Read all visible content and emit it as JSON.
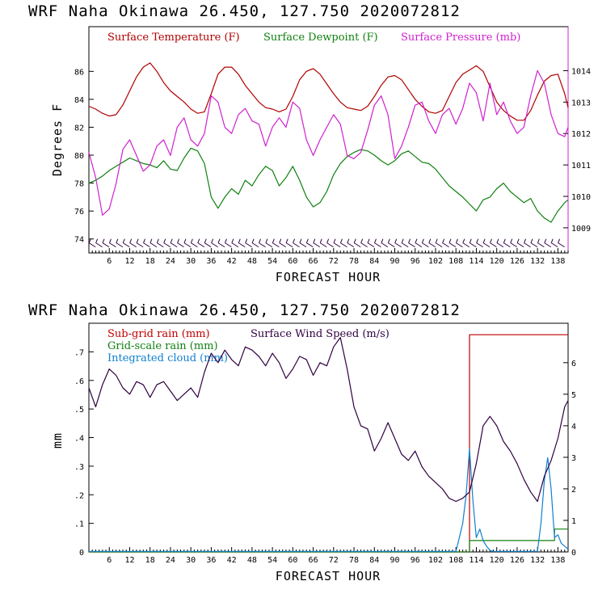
{
  "chart_data": [
    {
      "type": "line",
      "title": "WRF   Naha Okinawa  26.450, 127.750  2020072812",
      "xlabel": "FORECAST HOUR",
      "ylabel": "Degrees F",
      "xlim": [
        0,
        141
      ],
      "ylim": [
        73,
        89.2
      ],
      "y2lim": [
        1008.2,
        1015.4
      ],
      "x_ticks": [
        6,
        12,
        18,
        24,
        30,
        36,
        42,
        48,
        54,
        60,
        66,
        72,
        78,
        84,
        90,
        96,
        102,
        108,
        114,
        120,
        126,
        132,
        138
      ],
      "x_tick_labels": [
        "6",
        "12",
        "18",
        "24",
        "30",
        "36",
        "42",
        "48",
        "54",
        "60",
        "66",
        "72",
        "78",
        "84",
        "90",
        "96",
        "102",
        "108",
        "114",
        "120",
        "126",
        "132",
        "138"
      ],
      "y_ticks": [
        74,
        76,
        78,
        80,
        82,
        84,
        86
      ],
      "y_tick_labels": [
        "74",
        "76",
        "78",
        "80",
        "82",
        "84",
        "86"
      ],
      "y2_ticks": [
        1009,
        1010,
        1011,
        1012,
        1013,
        1014
      ],
      "y2_tick_labels": [
        "1009",
        "1010",
        "1011",
        "1012",
        "1013",
        "1014"
      ],
      "colors": {
        "temp": "#b00000",
        "dew": "#108010",
        "pres": "#d020d0"
      },
      "legend": [
        "Surface Temperature (F)",
        "Surface Dewpoint (F)",
        "Surface Pressure (mb)"
      ],
      "wind_barbs": "row of wind barbs along bottom at each forecast hour",
      "series": [
        {
          "name": "Surface Temperature (F)",
          "x": [
            0,
            2,
            4,
            6,
            8,
            10,
            12,
            14,
            16,
            18,
            20,
            22,
            24,
            26,
            28,
            30,
            32,
            34,
            36,
            38,
            40,
            42,
            44,
            46,
            48,
            50,
            52,
            54,
            56,
            58,
            60,
            62,
            64,
            66,
            68,
            70,
            72,
            74,
            76,
            78,
            80,
            82,
            84,
            86,
            88,
            90,
            92,
            94,
            96,
            98,
            100,
            102,
            104,
            106,
            108,
            110,
            112,
            114,
            116,
            118,
            120,
            122,
            124,
            126,
            128,
            130,
            132,
            134,
            136,
            138,
            140,
            141
          ],
          "values": [
            83.5,
            83.3,
            83.0,
            82.8,
            82.9,
            83.6,
            84.6,
            85.6,
            86.3,
            86.6,
            86.0,
            85.2,
            84.6,
            84.2,
            83.8,
            83.3,
            83.0,
            83.1,
            84.4,
            85.8,
            86.3,
            86.3,
            85.8,
            85.0,
            84.4,
            83.8,
            83.4,
            83.3,
            83.1,
            83.3,
            84.2,
            85.4,
            86.0,
            86.2,
            85.8,
            85.1,
            84.4,
            83.8,
            83.4,
            83.3,
            83.2,
            83.5,
            84.2,
            85.0,
            85.6,
            85.7,
            85.4,
            84.7,
            84.0,
            83.5,
            83.1,
            83.0,
            83.2,
            84.2,
            85.2,
            85.8,
            86.1,
            86.4,
            86.0,
            84.9,
            83.8,
            83.2,
            82.8,
            82.5,
            82.5,
            83.2,
            84.3,
            85.3,
            85.7,
            85.8,
            84.4,
            83.4
          ]
        },
        {
          "name": "Surface Dewpoint (F)",
          "x": [
            0,
            2,
            4,
            6,
            8,
            10,
            12,
            14,
            16,
            18,
            20,
            22,
            24,
            26,
            28,
            30,
            32,
            34,
            36,
            38,
            40,
            42,
            44,
            46,
            48,
            50,
            52,
            54,
            56,
            58,
            60,
            62,
            64,
            66,
            68,
            70,
            72,
            74,
            76,
            78,
            80,
            82,
            84,
            86,
            88,
            90,
            92,
            94,
            96,
            98,
            100,
            102,
            104,
            106,
            108,
            110,
            112,
            114,
            116,
            118,
            120,
            122,
            124,
            126,
            128,
            130,
            132,
            134,
            136,
            138,
            140,
            141
          ],
          "values": [
            78.0,
            78.2,
            78.5,
            78.9,
            79.2,
            79.5,
            79.8,
            79.6,
            79.4,
            79.3,
            79.1,
            79.6,
            79.0,
            78.9,
            79.8,
            80.5,
            80.3,
            79.4,
            77.0,
            76.2,
            77.0,
            77.6,
            77.2,
            78.2,
            77.8,
            78.6,
            79.2,
            78.9,
            77.8,
            78.4,
            79.2,
            78.2,
            77.0,
            76.3,
            76.6,
            77.4,
            78.6,
            79.4,
            79.9,
            80.2,
            80.4,
            80.3,
            80.0,
            79.6,
            79.3,
            79.6,
            80.1,
            80.3,
            79.9,
            79.5,
            79.4,
            79.0,
            78.4,
            77.8,
            77.4,
            77.0,
            76.5,
            76.0,
            76.8,
            77.0,
            77.6,
            78.0,
            77.4,
            77.0,
            76.6,
            76.9,
            76.0,
            75.5,
            75.2,
            76.0,
            76.6,
            76.8
          ]
        },
        {
          "name": "Surface Pressure (mb)",
          "axis": "right",
          "x": [
            0,
            2,
            4,
            6,
            8,
            10,
            12,
            14,
            16,
            18,
            20,
            22,
            24,
            26,
            28,
            30,
            32,
            34,
            36,
            38,
            40,
            42,
            44,
            46,
            48,
            50,
            52,
            54,
            56,
            58,
            60,
            62,
            64,
            66,
            68,
            70,
            72,
            74,
            76,
            78,
            80,
            82,
            84,
            86,
            88,
            90,
            92,
            94,
            96,
            98,
            100,
            102,
            104,
            106,
            108,
            110,
            112,
            114,
            116,
            118,
            120,
            122,
            124,
            126,
            128,
            130,
            132,
            134,
            136,
            138,
            140,
            141
          ],
          "values": [
            1011.4,
            1010.6,
            1009.4,
            1009.6,
            1010.4,
            1011.5,
            1011.8,
            1011.3,
            1010.8,
            1011.0,
            1011.6,
            1011.8,
            1011.3,
            1012.2,
            1012.5,
            1011.8,
            1011.6,
            1012.0,
            1013.2,
            1013.0,
            1012.2,
            1012.0,
            1012.6,
            1012.8,
            1012.4,
            1012.3,
            1011.6,
            1012.2,
            1012.5,
            1012.2,
            1013.0,
            1012.8,
            1011.8,
            1011.3,
            1011.8,
            1012.2,
            1012.6,
            1012.3,
            1011.3,
            1011.2,
            1011.4,
            1012.1,
            1012.9,
            1013.2,
            1012.6,
            1011.2,
            1011.6,
            1012.2,
            1012.9,
            1013.0,
            1012.4,
            1012.0,
            1012.6,
            1012.8,
            1012.3,
            1012.8,
            1013.6,
            1013.3,
            1012.4,
            1013.6,
            1012.6,
            1013.0,
            1012.4,
            1012.0,
            1012.2,
            1013.2,
            1014.0,
            1013.6,
            1012.6,
            1012.0,
            1011.9,
            1012.2
          ]
        }
      ]
    },
    {
      "type": "line",
      "title": "WRF   Naha Okinawa  26.450, 127.750  2020072812",
      "xlabel": "FORECAST HOUR",
      "ylabel": "mm",
      "xlim": [
        0,
        141
      ],
      "ylim": [
        0,
        0.8
      ],
      "y2lim": [
        0,
        7.25
      ],
      "x_ticks": [
        6,
        12,
        18,
        24,
        30,
        36,
        42,
        48,
        54,
        60,
        66,
        72,
        78,
        84,
        90,
        96,
        102,
        108,
        114,
        120,
        126,
        132,
        138
      ],
      "x_tick_labels": [
        "6",
        "12",
        "18",
        "24",
        "30",
        "36",
        "42",
        "48",
        "54",
        "60",
        "66",
        "72",
        "78",
        "84",
        "90",
        "96",
        "102",
        "108",
        "114",
        "120",
        "126",
        "132",
        "138"
      ],
      "y_ticks": [
        0,
        0.1,
        0.2,
        0.3,
        0.4,
        0.5,
        0.6,
        0.7
      ],
      "y_tick_labels": [
        "0",
        ".1",
        ".2",
        ".3",
        ".4",
        ".5",
        ".6",
        ".7"
      ],
      "y2_ticks": [
        0,
        1,
        2,
        3,
        4,
        5,
        6
      ],
      "y2_tick_labels": [
        "0",
        "1",
        "2",
        "3",
        "4",
        "5",
        "6"
      ],
      "colors": {
        "subgrid": "#c00000",
        "grid": "#108010",
        "cloud": "#1080d0",
        "wind": "#300040"
      },
      "legend": [
        "Sub-grid rain (mm)",
        "Grid-scale rain (mm)",
        "Integrated cloud (mm)",
        "Surface Wind Speed (m/s)"
      ],
      "series": [
        {
          "name": "Sub-grid rain (mm)",
          "x": [
            0,
            112,
            112,
            141
          ],
          "values": [
            0,
            0,
            0.76,
            0.76
          ]
        },
        {
          "name": "Grid-scale rain (mm)",
          "x": [
            0,
            112,
            112,
            137,
            137,
            141
          ],
          "values": [
            0,
            0,
            0.04,
            0.04,
            0.08,
            0.08
          ]
        },
        {
          "name": "Integrated cloud (mm)",
          "x": [
            0,
            108,
            109,
            110,
            111,
            112,
            113,
            114,
            115,
            116,
            117,
            118,
            119,
            120,
            132,
            133,
            134,
            135,
            136,
            137,
            138,
            139,
            140,
            141
          ],
          "values": [
            0.002,
            0.002,
            0.05,
            0.1,
            0.2,
            0.36,
            0.18,
            0.05,
            0.08,
            0.04,
            0.02,
            0.005,
            0.002,
            0.002,
            0.002,
            0.1,
            0.25,
            0.33,
            0.22,
            0.05,
            0.06,
            0.03,
            0.02,
            0.01
          ]
        },
        {
          "name": "Surface Wind Speed (m/s)",
          "axis": "right",
          "x": [
            0,
            2,
            4,
            6,
            8,
            10,
            12,
            14,
            16,
            18,
            20,
            22,
            24,
            26,
            28,
            30,
            32,
            34,
            36,
            38,
            40,
            42,
            44,
            46,
            48,
            50,
            52,
            54,
            56,
            58,
            60,
            62,
            64,
            66,
            68,
            70,
            72,
            74,
            76,
            78,
            80,
            82,
            84,
            86,
            88,
            90,
            92,
            94,
            96,
            98,
            100,
            102,
            104,
            106,
            108,
            110,
            112,
            114,
            116,
            118,
            120,
            122,
            124,
            126,
            128,
            130,
            132,
            134,
            136,
            138,
            140,
            141
          ],
          "values": [
            5.2,
            4.6,
            5.3,
            5.8,
            5.6,
            5.2,
            5.0,
            5.4,
            5.3,
            4.9,
            5.3,
            5.4,
            5.1,
            4.8,
            5.0,
            5.2,
            4.9,
            5.7,
            6.3,
            6.0,
            6.4,
            6.1,
            5.9,
            6.5,
            6.4,
            6.2,
            5.9,
            6.3,
            6.0,
            5.5,
            5.8,
            6.2,
            6.1,
            5.6,
            6.0,
            5.9,
            6.5,
            6.8,
            5.8,
            4.6,
            4.0,
            3.9,
            3.2,
            3.6,
            4.1,
            3.6,
            3.1,
            2.9,
            3.2,
            2.7,
            2.4,
            2.2,
            2.0,
            1.7,
            1.6,
            1.7,
            1.9,
            2.8,
            4.0,
            4.3,
            4.0,
            3.5,
            3.2,
            2.8,
            2.3,
            1.9,
            1.6,
            2.4,
            2.9,
            3.6,
            4.6,
            4.8
          ]
        }
      ]
    }
  ]
}
